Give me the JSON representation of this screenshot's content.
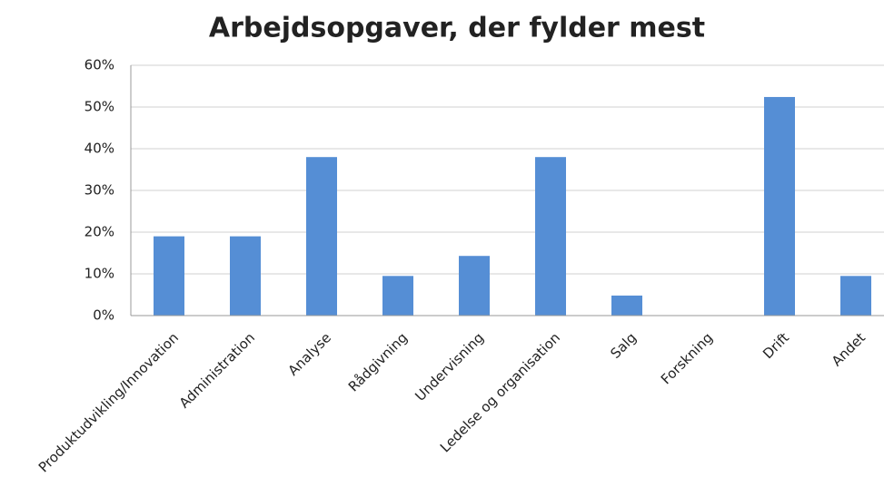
{
  "chart_data": {
    "type": "bar",
    "title": "Arbejdsopgaver, der fylder mest",
    "categories": [
      "Produktudvikling/Innovation",
      "Administration",
      "Analyse",
      "Rådgivning",
      "Undervisning",
      "Ledelse og organisation",
      "Salg",
      "Forskning",
      "Drift",
      "Andet"
    ],
    "values": [
      19,
      19,
      38,
      9.5,
      14.3,
      38,
      4.8,
      0,
      52.4,
      9.5
    ],
    "color": "#558ed5",
    "ylim": [
      0,
      60
    ],
    "yticks": [
      {
        "value": 0,
        "label": "0%"
      },
      {
        "value": 10,
        "label": "10%"
      },
      {
        "value": 20,
        "label": "20%"
      },
      {
        "value": 30,
        "label": "30%"
      },
      {
        "value": 40,
        "label": "40%"
      },
      {
        "value": 50,
        "label": "50%"
      },
      {
        "value": 60,
        "label": "60%"
      }
    ],
    "grid": true
  }
}
